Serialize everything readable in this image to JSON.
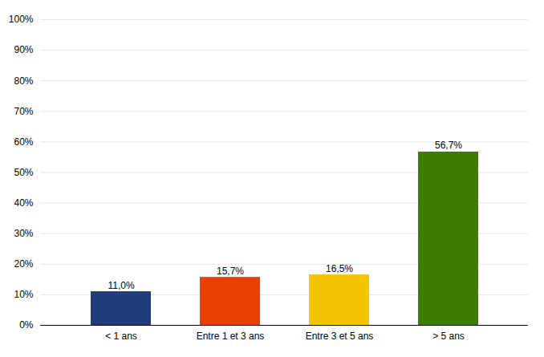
{
  "chart_data": {
    "type": "bar",
    "categories": [
      "< 1 ans",
      "Entre 1 et 3 ans",
      "Entre 3 et 5 ans",
      "> 5 ans"
    ],
    "values": [
      11.0,
      15.7,
      16.5,
      56.7
    ],
    "value_labels": [
      "11,0%",
      "15,7%",
      "16,5%",
      "56,7%"
    ],
    "data_labels": true,
    "colors": [
      "#1f3d7a",
      "#e84000",
      "#f5c400",
      "#3a7d00"
    ],
    "ylim": [
      0,
      100
    ],
    "yticks": [
      {
        "value": 0,
        "label": "0%"
      },
      {
        "value": 10,
        "label": "10%"
      },
      {
        "value": 20,
        "label": "20%"
      },
      {
        "value": 30,
        "label": "30%"
      },
      {
        "value": 40,
        "label": "40%"
      },
      {
        "value": 50,
        "label": "50%"
      },
      {
        "value": 60,
        "label": "60%"
      },
      {
        "value": 70,
        "label": "70%"
      },
      {
        "value": 80,
        "label": "80%"
      },
      {
        "value": 90,
        "label": "90%"
      },
      {
        "value": 100,
        "label": "100%"
      }
    ],
    "grid": true
  }
}
